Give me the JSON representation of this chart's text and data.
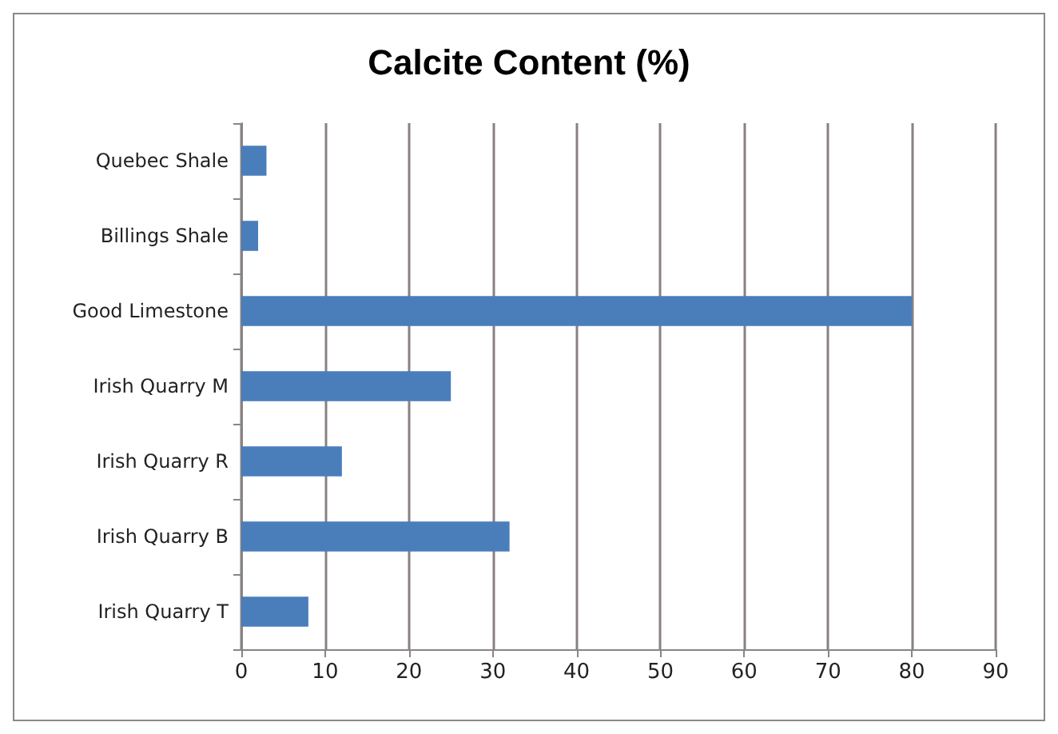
{
  "chart_data": {
    "type": "bar",
    "orientation": "horizontal",
    "title": "Calcite Content (%)",
    "categories": [
      "Quebec Shale",
      "Billings Shale",
      "Good Limestone",
      "Irish Quarry M",
      "Irish Quarry R",
      "Irish Quarry B",
      "Irish Quarry T"
    ],
    "values": [
      3,
      2,
      80,
      25,
      12,
      32,
      8
    ],
    "color": "#4a7ebb",
    "xlim": [
      0,
      90
    ],
    "xticks": [
      0,
      10,
      20,
      30,
      40,
      50,
      60,
      70,
      80,
      90
    ],
    "grid": "x"
  }
}
